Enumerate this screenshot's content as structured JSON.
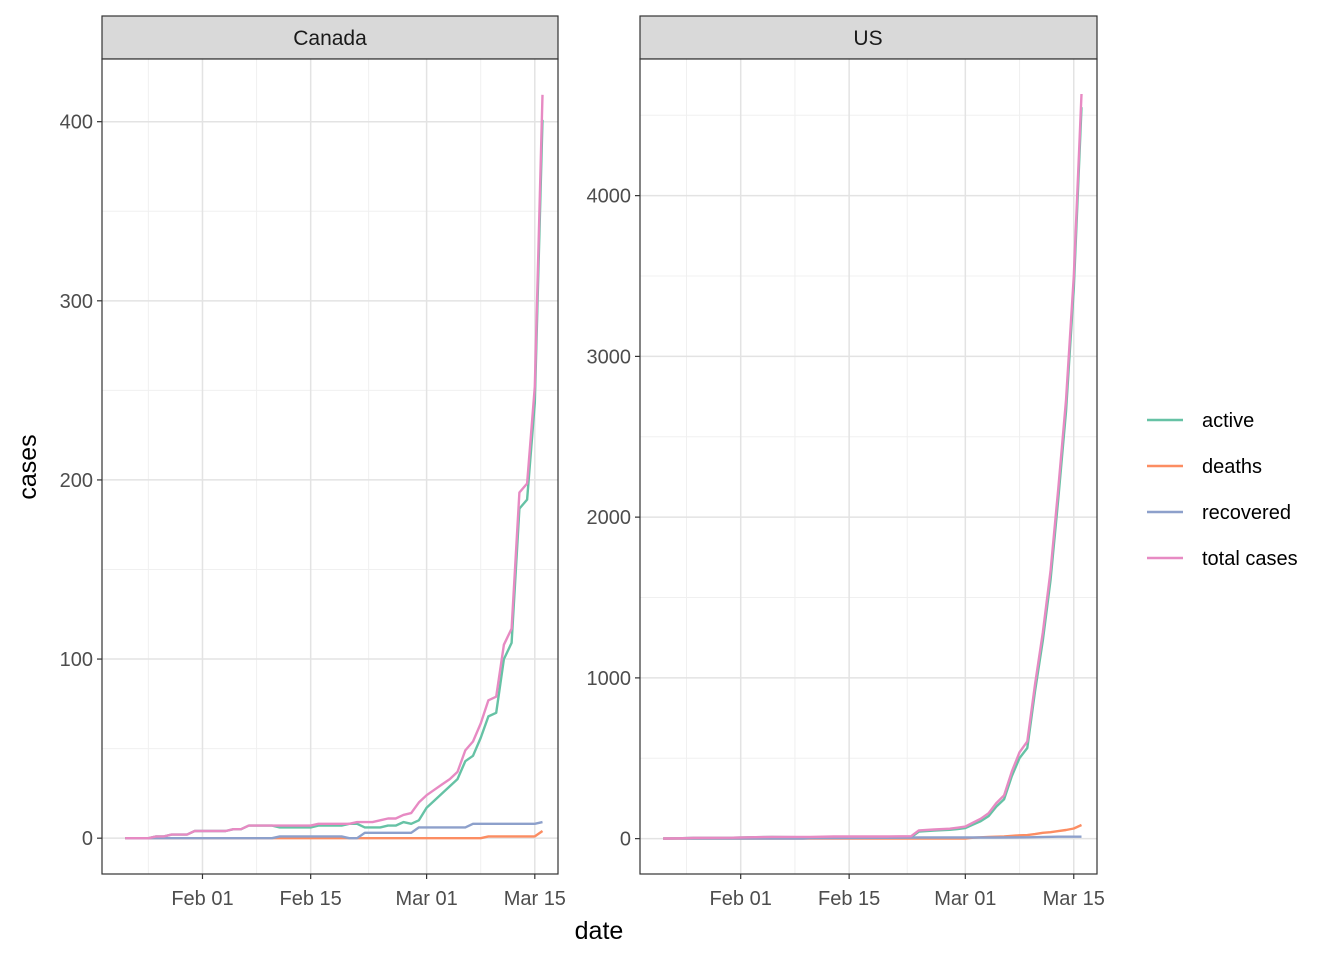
{
  "chart_data": {
    "type": "line",
    "xlabel": "date",
    "ylabel": "cases",
    "x_tick_labels": [
      "Feb 01",
      "Feb 15",
      "Mar 01",
      "Mar 15"
    ],
    "x_ticks": [
      "2020-02-01",
      "2020-02-15",
      "2020-03-01",
      "2020-03-15"
    ],
    "x_range": [
      "2020-01-19",
      "2020-03-18"
    ],
    "grid": true,
    "legend_position": "right",
    "legend": [
      {
        "name": "active",
        "color": "#66C2A5"
      },
      {
        "name": "deaths",
        "color": "#FC8D62"
      },
      {
        "name": "recovered",
        "color": "#8DA0CB"
      },
      {
        "name": "total cases",
        "color": "#E78AC3"
      }
    ],
    "panels": [
      {
        "title": "Canada",
        "ylim": [
          -20,
          435
        ],
        "y_ticks": [
          0,
          100,
          200,
          300,
          400
        ],
        "y_tick_labels": [
          "0",
          "100",
          "200",
          "300",
          "400"
        ],
        "series": [
          {
            "name": "total cases",
            "color": "#E78AC3",
            "points": [
              [
                "2020-01-22",
                0
              ],
              [
                "2020-01-25",
                0
              ],
              [
                "2020-01-26",
                1
              ],
              [
                "2020-01-27",
                1
              ],
              [
                "2020-01-28",
                2
              ],
              [
                "2020-01-30",
                2
              ],
              [
                "2020-01-31",
                4
              ],
              [
                "2020-02-04",
                4
              ],
              [
                "2020-02-05",
                5
              ],
              [
                "2020-02-06",
                5
              ],
              [
                "2020-02-07",
                7
              ],
              [
                "2020-02-15",
                7
              ],
              [
                "2020-02-16",
                8
              ],
              [
                "2020-02-20",
                8
              ],
              [
                "2020-02-21",
                9
              ],
              [
                "2020-02-23",
                9
              ],
              [
                "2020-02-24",
                10
              ],
              [
                "2020-02-25",
                11
              ],
              [
                "2020-02-26",
                11
              ],
              [
                "2020-02-27",
                13
              ],
              [
                "2020-02-28",
                14
              ],
              [
                "2020-02-29",
                20
              ],
              [
                "2020-03-01",
                24
              ],
              [
                "2020-03-02",
                27
              ],
              [
                "2020-03-03",
                30
              ],
              [
                "2020-03-04",
                33
              ],
              [
                "2020-03-05",
                37
              ],
              [
                "2020-03-06",
                49
              ],
              [
                "2020-03-07",
                54
              ],
              [
                "2020-03-08",
                64
              ],
              [
                "2020-03-09",
                77
              ],
              [
                "2020-03-10",
                79
              ],
              [
                "2020-03-11",
                108
              ],
              [
                "2020-03-12",
                117
              ],
              [
                "2020-03-13",
                193
              ],
              [
                "2020-03-14",
                198
              ],
              [
                "2020-03-15",
                252
              ],
              [
                "2020-03-16",
                415
              ]
            ]
          },
          {
            "name": "active",
            "color": "#66C2A5",
            "points": [
              [
                "2020-01-22",
                0
              ],
              [
                "2020-01-25",
                0
              ],
              [
                "2020-01-26",
                1
              ],
              [
                "2020-01-27",
                1
              ],
              [
                "2020-01-28",
                2
              ],
              [
                "2020-01-30",
                2
              ],
              [
                "2020-01-31",
                4
              ],
              [
                "2020-02-04",
                4
              ],
              [
                "2020-02-05",
                5
              ],
              [
                "2020-02-06",
                5
              ],
              [
                "2020-02-07",
                7
              ],
              [
                "2020-02-10",
                7
              ],
              [
                "2020-02-11",
                6
              ],
              [
                "2020-02-15",
                6
              ],
              [
                "2020-02-16",
                7
              ],
              [
                "2020-02-19",
                7
              ],
              [
                "2020-02-20",
                8
              ],
              [
                "2020-02-21",
                8
              ],
              [
                "2020-02-22",
                6
              ],
              [
                "2020-02-24",
                6
              ],
              [
                "2020-02-25",
                7
              ],
              [
                "2020-02-26",
                7
              ],
              [
                "2020-02-27",
                9
              ],
              [
                "2020-02-28",
                8
              ],
              [
                "2020-02-29",
                10
              ],
              [
                "2020-03-01",
                17
              ],
              [
                "2020-03-02",
                21
              ],
              [
                "2020-03-03",
                25
              ],
              [
                "2020-03-04",
                29
              ],
              [
                "2020-03-05",
                33
              ],
              [
                "2020-03-06",
                43
              ],
              [
                "2020-03-07",
                46
              ],
              [
                "2020-03-08",
                56
              ],
              [
                "2020-03-09",
                68
              ],
              [
                "2020-03-10",
                70
              ],
              [
                "2020-03-11",
                100
              ],
              [
                "2020-03-12",
                109
              ],
              [
                "2020-03-13",
                184
              ],
              [
                "2020-03-14",
                189
              ],
              [
                "2020-03-15",
                243
              ],
              [
                "2020-03-16",
                401
              ]
            ]
          },
          {
            "name": "recovered",
            "color": "#8DA0CB",
            "points": [
              [
                "2020-01-22",
                0
              ],
              [
                "2020-02-10",
                0
              ],
              [
                "2020-02-11",
                1
              ],
              [
                "2020-02-19",
                1
              ],
              [
                "2020-02-20",
                0
              ],
              [
                "2020-02-21",
                0
              ],
              [
                "2020-02-22",
                3
              ],
              [
                "2020-02-27",
                3
              ],
              [
                "2020-02-28",
                3
              ],
              [
                "2020-02-29",
                6
              ],
              [
                "2020-03-06",
                6
              ],
              [
                "2020-03-07",
                8
              ],
              [
                "2020-03-15",
                8
              ],
              [
                "2020-03-16",
                9
              ]
            ]
          },
          {
            "name": "deaths",
            "color": "#FC8D62",
            "points": [
              [
                "2020-01-22",
                0
              ],
              [
                "2020-03-08",
                0
              ],
              [
                "2020-03-09",
                1
              ],
              [
                "2020-03-15",
                1
              ],
              [
                "2020-03-16",
                4
              ]
            ]
          }
        ]
      },
      {
        "title": "US",
        "ylim": [
          -220,
          4850
        ],
        "y_ticks": [
          0,
          1000,
          2000,
          3000,
          4000
        ],
        "y_tick_labels": [
          "0",
          "1000",
          "2000",
          "3000",
          "4000"
        ],
        "series": [
          {
            "name": "total cases",
            "color": "#E78AC3",
            "points": [
              [
                "2020-01-22",
                1
              ],
              [
                "2020-01-24",
                2
              ],
              [
                "2020-01-26",
                5
              ],
              [
                "2020-01-31",
                6
              ],
              [
                "2020-02-02",
                8
              ],
              [
                "2020-02-05",
                11
              ],
              [
                "2020-02-10",
                11
              ],
              [
                "2020-02-13",
                13
              ],
              [
                "2020-02-20",
                13
              ],
              [
                "2020-02-23",
                15
              ],
              [
                "2020-02-24",
                51
              ],
              [
                "2020-02-26",
                57
              ],
              [
                "2020-02-28",
                62
              ],
              [
                "2020-02-29",
                68
              ],
              [
                "2020-03-01",
                75
              ],
              [
                "2020-03-02",
                100
              ],
              [
                "2020-03-03",
                124
              ],
              [
                "2020-03-04",
                158
              ],
              [
                "2020-03-05",
                221
              ],
              [
                "2020-03-06",
                269
              ],
              [
                "2020-03-07",
                417
              ],
              [
                "2020-03-08",
                537
              ],
              [
                "2020-03-09",
                605
              ],
              [
                "2020-03-10",
                959
              ],
              [
                "2020-03-11",
                1281
              ],
              [
                "2020-03-12",
                1663
              ],
              [
                "2020-03-13",
                2179
              ],
              [
                "2020-03-14",
                2727
              ],
              [
                "2020-03-15",
                3499
              ],
              [
                "2020-03-16",
                4632
              ]
            ]
          },
          {
            "name": "active",
            "color": "#66C2A5",
            "points": [
              [
                "2020-01-22",
                1
              ],
              [
                "2020-01-24",
                2
              ],
              [
                "2020-01-26",
                5
              ],
              [
                "2020-01-31",
                6
              ],
              [
                "2020-02-02",
                8
              ],
              [
                "2020-02-05",
                11
              ],
              [
                "2020-02-10",
                8
              ],
              [
                "2020-02-13",
                10
              ],
              [
                "2020-02-20",
                6
              ],
              [
                "2020-02-23",
                8
              ],
              [
                "2020-02-24",
                44
              ],
              [
                "2020-02-26",
                50
              ],
              [
                "2020-02-28",
                55
              ],
              [
                "2020-02-29",
                60
              ],
              [
                "2020-03-01",
                66
              ],
              [
                "2020-03-02",
                88
              ],
              [
                "2020-03-03",
                109
              ],
              [
                "2020-03-04",
                140
              ],
              [
                "2020-03-05",
                199
              ],
              [
                "2020-03-06",
                245
              ],
              [
                "2020-03-07",
                389
              ],
              [
                "2020-03-08",
                501
              ],
              [
                "2020-03-09",
                564
              ],
              [
                "2020-03-10",
                916
              ],
              [
                "2020-03-11",
                1232
              ],
              [
                "2020-03-12",
                1607
              ],
              [
                "2020-03-13",
                2116
              ],
              [
                "2020-03-14",
                2657
              ],
              [
                "2020-03-15",
                3423
              ],
              [
                "2020-03-16",
                4550
              ]
            ]
          },
          {
            "name": "recovered",
            "color": "#8DA0CB",
            "points": [
              [
                "2020-01-22",
                0
              ],
              [
                "2020-02-09",
                0
              ],
              [
                "2020-02-10",
                3
              ],
              [
                "2020-02-20",
                5
              ],
              [
                "2020-02-24",
                7
              ],
              [
                "2020-03-02",
                7
              ],
              [
                "2020-03-05",
                7
              ],
              [
                "2020-03-09",
                8
              ],
              [
                "2020-03-13",
                12
              ],
              [
                "2020-03-16",
                12
              ]
            ]
          },
          {
            "name": "deaths",
            "color": "#FC8D62",
            "points": [
              [
                "2020-01-22",
                0
              ],
              [
                "2020-02-28",
                0
              ],
              [
                "2020-02-29",
                1
              ],
              [
                "2020-03-01",
                1
              ],
              [
                "2020-03-02",
                6
              ],
              [
                "2020-03-04",
                11
              ],
              [
                "2020-03-06",
                14
              ],
              [
                "2020-03-08",
                21
              ],
              [
                "2020-03-09",
                22
              ],
              [
                "2020-03-10",
                28
              ],
              [
                "2020-03-11",
                36
              ],
              [
                "2020-03-12",
                40
              ],
              [
                "2020-03-13",
                47
              ],
              [
                "2020-03-14",
                54
              ],
              [
                "2020-03-15",
                63
              ],
              [
                "2020-03-16",
                85
              ]
            ]
          }
        ]
      }
    ]
  }
}
